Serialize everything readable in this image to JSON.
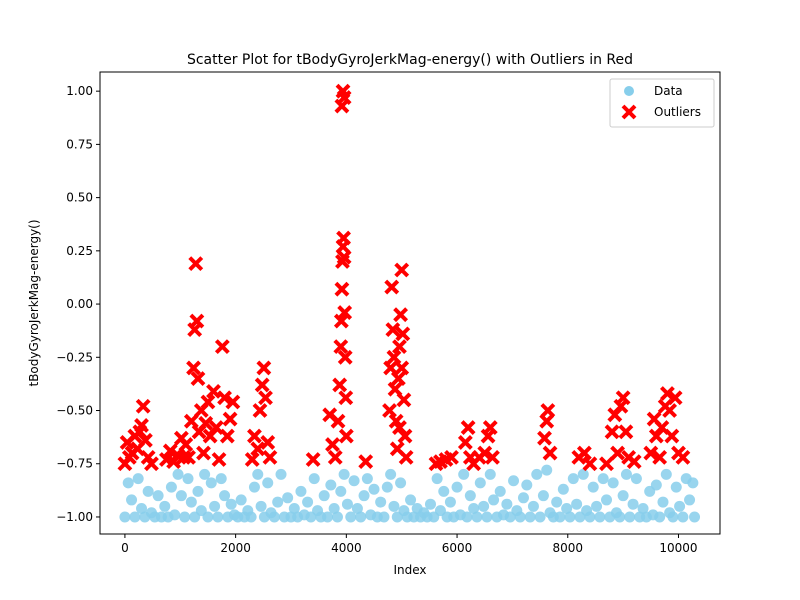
{
  "chart_data": {
    "type": "scatter",
    "title": "Scatter Plot for tBodyGyroJerkMag-energy() with Outliers in Red",
    "xlabel": "Index",
    "ylabel": "tBodyGyroJerkMag-energy()",
    "xlim": [
      -450,
      10750
    ],
    "ylim": [
      -1.08,
      1.09
    ],
    "xticks": [
      0,
      2000,
      4000,
      6000,
      8000,
      10000
    ],
    "yticks": [
      -1.0,
      -0.75,
      -0.5,
      -0.25,
      0.0,
      0.25,
      0.5,
      0.75,
      1.0
    ],
    "xtick_labels": [
      "0",
      "2000",
      "4000",
      "6000",
      "8000",
      "10000"
    ],
    "ytick_labels": [
      "−1.00",
      "−0.75",
      "−0.50",
      "−0.25",
      "0.00",
      "0.25",
      "0.50",
      "0.75",
      "1.00"
    ],
    "legend_position": "top-right",
    "series": [
      {
        "name": "Data",
        "color": "#87ceeb",
        "marker": "circle",
        "points": [
          [
            0,
            -1.0
          ],
          [
            60,
            -0.84
          ],
          [
            120,
            -0.92
          ],
          [
            180,
            -1.0
          ],
          [
            240,
            -0.82
          ],
          [
            300,
            -0.96
          ],
          [
            360,
            -1.0
          ],
          [
            420,
            -0.88
          ],
          [
            480,
            -0.98
          ],
          [
            540,
            -1.0
          ],
          [
            600,
            -0.9
          ],
          [
            660,
            -1.0
          ],
          [
            720,
            -0.95
          ],
          [
            780,
            -1.0
          ],
          [
            840,
            -0.86
          ],
          [
            900,
            -0.99
          ],
          [
            960,
            -0.8
          ],
          [
            1020,
            -0.9
          ],
          [
            1080,
            -1.0
          ],
          [
            1140,
            -0.82
          ],
          [
            1200,
            -0.93
          ],
          [
            1260,
            -1.0
          ],
          [
            1320,
            -0.88
          ],
          [
            1380,
            -0.97
          ],
          [
            1440,
            -0.8
          ],
          [
            1500,
            -1.0
          ],
          [
            1560,
            -0.84
          ],
          [
            1620,
            -0.95
          ],
          [
            1680,
            -1.0
          ],
          [
            1740,
            -0.82
          ],
          [
            1800,
            -0.9
          ],
          [
            1860,
            -1.0
          ],
          [
            1920,
            -0.94
          ],
          [
            1980,
            -0.99
          ],
          [
            2040,
            -1.0
          ],
          [
            2100,
            -0.92
          ],
          [
            2160,
            -1.0
          ],
          [
            2220,
            -0.97
          ],
          [
            2280,
            -1.0
          ],
          [
            2340,
            -0.86
          ],
          [
            2400,
            -0.8
          ],
          [
            2460,
            -0.95
          ],
          [
            2520,
            -1.0
          ],
          [
            2580,
            -0.84
          ],
          [
            2640,
            -0.98
          ],
          [
            2700,
            -1.0
          ],
          [
            2760,
            -0.93
          ],
          [
            2820,
            -0.8
          ],
          [
            2880,
            -1.0
          ],
          [
            2940,
            -0.91
          ],
          [
            3000,
            -1.0
          ],
          [
            3060,
            -0.96
          ],
          [
            3120,
            -1.0
          ],
          [
            3180,
            -0.88
          ],
          [
            3240,
            -0.99
          ],
          [
            3300,
            -0.93
          ],
          [
            3360,
            -1.0
          ],
          [
            3420,
            -0.82
          ],
          [
            3480,
            -0.97
          ],
          [
            3540,
            -1.0
          ],
          [
            3600,
            -0.9
          ],
          [
            3660,
            -1.0
          ],
          [
            3720,
            -0.85
          ],
          [
            3780,
            -0.96
          ],
          [
            3840,
            -1.0
          ],
          [
            3900,
            -0.88
          ],
          [
            3960,
            -0.8
          ],
          [
            4020,
            -0.94
          ],
          [
            4080,
            -1.0
          ],
          [
            4140,
            -0.83
          ],
          [
            4200,
            -0.96
          ],
          [
            4260,
            -1.0
          ],
          [
            4320,
            -0.9
          ],
          [
            4380,
            -0.82
          ],
          [
            4440,
            -0.99
          ],
          [
            4500,
            -0.87
          ],
          [
            4560,
            -1.0
          ],
          [
            4620,
            -0.93
          ],
          [
            4680,
            -1.0
          ],
          [
            4740,
            -0.86
          ],
          [
            4800,
            -0.8
          ],
          [
            4860,
            -0.95
          ],
          [
            4920,
            -1.0
          ],
          [
            4980,
            -0.84
          ],
          [
            5040,
            -0.97
          ],
          [
            5100,
            -1.0
          ],
          [
            5160,
            -0.92
          ],
          [
            5220,
            -1.0
          ],
          [
            5280,
            -0.96
          ],
          [
            5340,
            -1.0
          ],
          [
            5400,
            -0.98
          ],
          [
            5460,
            -1.0
          ],
          [
            5520,
            -0.94
          ],
          [
            5580,
            -1.0
          ],
          [
            5640,
            -0.82
          ],
          [
            5700,
            -0.97
          ],
          [
            5760,
            -0.88
          ],
          [
            5820,
            -1.0
          ],
          [
            5880,
            -0.93
          ],
          [
            5940,
            -1.0
          ],
          [
            6000,
            -0.86
          ],
          [
            6060,
            -0.99
          ],
          [
            6120,
            -0.8
          ],
          [
            6180,
            -1.0
          ],
          [
            6240,
            -0.9
          ],
          [
            6300,
            -0.96
          ],
          [
            6360,
            -1.0
          ],
          [
            6420,
            -0.84
          ],
          [
            6480,
            -0.95
          ],
          [
            6540,
            -1.0
          ],
          [
            6600,
            -0.8
          ],
          [
            6660,
            -0.92
          ],
          [
            6720,
            -1.0
          ],
          [
            6780,
            -0.88
          ],
          [
            6840,
            -0.99
          ],
          [
            6900,
            -0.94
          ],
          [
            6960,
            -1.0
          ],
          [
            7020,
            -0.83
          ],
          [
            7080,
            -0.97
          ],
          [
            7140,
            -1.0
          ],
          [
            7200,
            -0.91
          ],
          [
            7260,
            -0.85
          ],
          [
            7320,
            -1.0
          ],
          [
            7380,
            -0.95
          ],
          [
            7440,
            -0.8
          ],
          [
            7500,
            -1.0
          ],
          [
            7560,
            -0.9
          ],
          [
            7620,
            -0.78
          ],
          [
            7680,
            -0.98
          ],
          [
            7740,
            -1.0
          ],
          [
            7800,
            -0.93
          ],
          [
            7860,
            -1.0
          ],
          [
            7920,
            -0.87
          ],
          [
            7980,
            -0.96
          ],
          [
            8040,
            -1.0
          ],
          [
            8100,
            -0.82
          ],
          [
            8160,
            -0.94
          ],
          [
            8220,
            -1.0
          ],
          [
            8280,
            -0.8
          ],
          [
            8340,
            -0.97
          ],
          [
            8400,
            -1.0
          ],
          [
            8460,
            -0.86
          ],
          [
            8520,
            -0.95
          ],
          [
            8580,
            -1.0
          ],
          [
            8640,
            -0.82
          ],
          [
            8700,
            -0.92
          ],
          [
            8760,
            -1.0
          ],
          [
            8820,
            -0.84
          ],
          [
            8880,
            -0.98
          ],
          [
            8940,
            -1.0
          ],
          [
            9000,
            -0.9
          ],
          [
            9060,
            -0.8
          ],
          [
            9120,
            -1.0
          ],
          [
            9180,
            -0.94
          ],
          [
            9240,
            -0.82
          ],
          [
            9300,
            -1.0
          ],
          [
            9360,
            -0.96
          ],
          [
            9420,
            -1.0
          ],
          [
            9480,
            -0.88
          ],
          [
            9540,
            -0.99
          ],
          [
            9600,
            -0.85
          ],
          [
            9660,
            -1.0
          ],
          [
            9720,
            -0.93
          ],
          [
            9780,
            -0.8
          ],
          [
            9840,
            -0.98
          ],
          [
            9900,
            -1.0
          ],
          [
            9960,
            -0.86
          ],
          [
            10020,
            -0.95
          ],
          [
            10080,
            -1.0
          ],
          [
            10140,
            -0.82
          ],
          [
            10200,
            -0.92
          ],
          [
            10260,
            -0.84
          ],
          [
            10290,
            -1.0
          ]
        ]
      },
      {
        "name": "Outliers",
        "color": "#ff0000",
        "marker": "x",
        "points": [
          [
            0,
            -0.75
          ],
          [
            40,
            -0.65
          ],
          [
            80,
            -0.72
          ],
          [
            130,
            -0.7
          ],
          [
            180,
            -0.62
          ],
          [
            230,
            -0.68
          ],
          [
            270,
            -0.6
          ],
          [
            300,
            -0.57
          ],
          [
            330,
            -0.48
          ],
          [
            370,
            -0.64
          ],
          [
            420,
            -0.72
          ],
          [
            480,
            -0.75
          ],
          [
            750,
            -0.73
          ],
          [
            820,
            -0.69
          ],
          [
            880,
            -0.74
          ],
          [
            950,
            -0.71
          ],
          [
            1020,
            -0.63
          ],
          [
            1060,
            -0.72
          ],
          [
            1100,
            -0.66
          ],
          [
            1150,
            -0.72
          ],
          [
            1200,
            -0.55
          ],
          [
            1240,
            -0.3
          ],
          [
            1260,
            -0.12
          ],
          [
            1280,
            0.19
          ],
          [
            1300,
            -0.08
          ],
          [
            1320,
            -0.35
          ],
          [
            1340,
            -0.6
          ],
          [
            1380,
            -0.5
          ],
          [
            1420,
            -0.7
          ],
          [
            1460,
            -0.56
          ],
          [
            1500,
            -0.46
          ],
          [
            1540,
            -0.62
          ],
          [
            1600,
            -0.41
          ],
          [
            1650,
            -0.58
          ],
          [
            1700,
            -0.73
          ],
          [
            1760,
            -0.2
          ],
          [
            1800,
            -0.44
          ],
          [
            1850,
            -0.62
          ],
          [
            1900,
            -0.54
          ],
          [
            1950,
            -0.46
          ],
          [
            2300,
            -0.73
          ],
          [
            2340,
            -0.62
          ],
          [
            2400,
            -0.68
          ],
          [
            2440,
            -0.5
          ],
          [
            2480,
            -0.38
          ],
          [
            2510,
            -0.3
          ],
          [
            2540,
            -0.44
          ],
          [
            2580,
            -0.65
          ],
          [
            2620,
            -0.72
          ],
          [
            3400,
            -0.73
          ],
          [
            3700,
            -0.52
          ],
          [
            3750,
            -0.66
          ],
          [
            3800,
            -0.72
          ],
          [
            3850,
            -0.55
          ],
          [
            3880,
            -0.38
          ],
          [
            3900,
            -0.2
          ],
          [
            3910,
            -0.08
          ],
          [
            3920,
            0.07
          ],
          [
            3930,
            0.2
          ],
          [
            3940,
            0.27
          ],
          [
            3950,
            0.31
          ],
          [
            3960,
            0.22
          ],
          [
            3970,
            -0.04
          ],
          [
            3980,
            -0.25
          ],
          [
            3990,
            -0.44
          ],
          [
            4000,
            -0.62
          ],
          [
            3920,
            0.93
          ],
          [
            3940,
            1.0
          ],
          [
            3960,
            0.97
          ],
          [
            4350,
            -0.74
          ],
          [
            4780,
            -0.5
          ],
          [
            4800,
            -0.3
          ],
          [
            4820,
            0.08
          ],
          [
            4840,
            -0.12
          ],
          [
            4860,
            -0.25
          ],
          [
            4880,
            -0.4
          ],
          [
            4900,
            -0.55
          ],
          [
            4920,
            -0.68
          ],
          [
            4940,
            -0.35
          ],
          [
            4960,
            -0.2
          ],
          [
            4980,
            -0.05
          ],
          [
            5000,
            0.16
          ],
          [
            5020,
            -0.14
          ],
          [
            5040,
            -0.45
          ],
          [
            5060,
            -0.62
          ],
          [
            5080,
            -0.72
          ],
          [
            5000,
            -0.3
          ],
          [
            4960,
            -0.58
          ],
          [
            5620,
            -0.75
          ],
          [
            5700,
            -0.74
          ],
          [
            5800,
            -0.73
          ],
          [
            5900,
            -0.72
          ],
          [
            6150,
            -0.65
          ],
          [
            6200,
            -0.58
          ],
          [
            6240,
            -0.72
          ],
          [
            6300,
            -0.75
          ],
          [
            6400,
            -0.72
          ],
          [
            6500,
            -0.7
          ],
          [
            6560,
            -0.62
          ],
          [
            6600,
            -0.58
          ],
          [
            6640,
            -0.72
          ],
          [
            7580,
            -0.63
          ],
          [
            7620,
            -0.55
          ],
          [
            7640,
            -0.5
          ],
          [
            7680,
            -0.7
          ],
          [
            8200,
            -0.72
          ],
          [
            8300,
            -0.7
          ],
          [
            8400,
            -0.75
          ],
          [
            8700,
            -0.75
          ],
          [
            8800,
            -0.6
          ],
          [
            8850,
            -0.52
          ],
          [
            8900,
            -0.7
          ],
          [
            8960,
            -0.48
          ],
          [
            9000,
            -0.44
          ],
          [
            9050,
            -0.6
          ],
          [
            9100,
            -0.72
          ],
          [
            9200,
            -0.74
          ],
          [
            9500,
            -0.7
          ],
          [
            9560,
            -0.54
          ],
          [
            9600,
            -0.62
          ],
          [
            9660,
            -0.72
          ],
          [
            9700,
            -0.58
          ],
          [
            9760,
            -0.48
          ],
          [
            9800,
            -0.42
          ],
          [
            9840,
            -0.5
          ],
          [
            9880,
            -0.62
          ],
          [
            9940,
            -0.44
          ],
          [
            10000,
            -0.7
          ],
          [
            10080,
            -0.72
          ]
        ]
      }
    ]
  }
}
